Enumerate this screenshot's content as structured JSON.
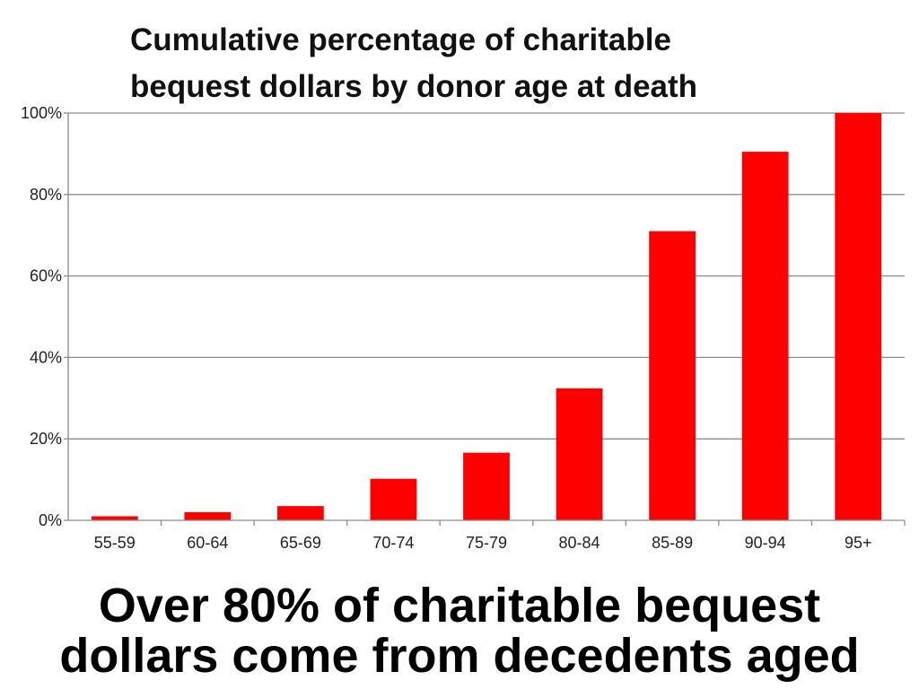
{
  "chart_data": {
    "type": "bar",
    "title_lines": [
      "Cumulative percentage of charitable",
      "bequest dollars by donor age at death"
    ],
    "xlabel": "",
    "ylabel": "",
    "categories": [
      "55-59",
      "60-64",
      "65-69",
      "70-74",
      "75-79",
      "80-84",
      "85-89",
      "90-94",
      "95+"
    ],
    "values": [
      1,
      2,
      3.5,
      10.2,
      16.6,
      32.4,
      71,
      90.5,
      100
    ],
    "ylim": [
      0,
      100
    ],
    "yticks": [
      0,
      20,
      40,
      60,
      80,
      100
    ],
    "ytick_labels": [
      "0%",
      "20%",
      "40%",
      "60%",
      "80%",
      "100%"
    ],
    "grid": true,
    "legend": "none",
    "bar_color": "#ff0000"
  },
  "caption": {
    "line1": "Over 80% of charitable bequest",
    "line2": "dollars come from decedents aged"
  }
}
